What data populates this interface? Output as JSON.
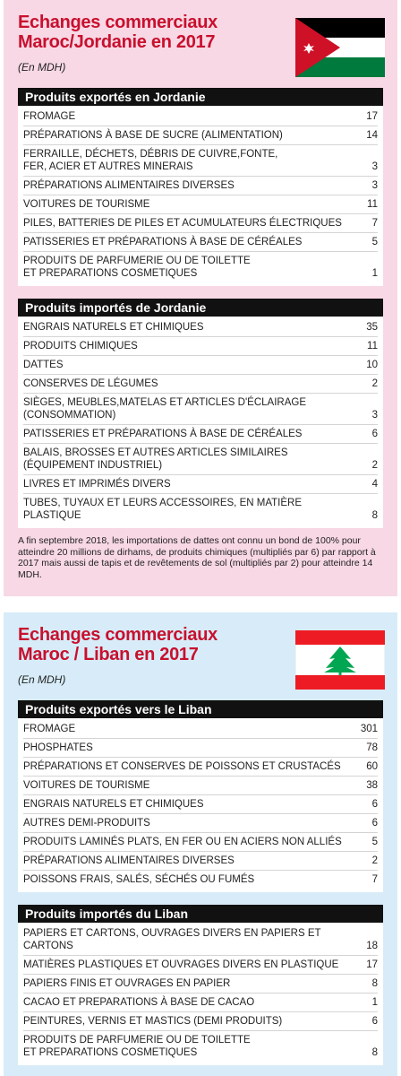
{
  "panels": [
    {
      "title": "Echanges commerciaux\nMaroc/Jordanie en 2017",
      "unit": "(En MDH)",
      "sections": [
        {
          "heading": "Produits exportés en Jordanie",
          "rows": [
            [
              "FROMAGE",
              17
            ],
            [
              "PRÉPARATIONS À BASE DE SUCRE (ALIMENTATION)",
              14
            ],
            [
              "FERRAILLE, DÉCHETS, DÉBRIS DE CUIVRE,FONTE,\nFER, ACIER ET AUTRES MINERAIS",
              3
            ],
            [
              "PRÉPARATIONS ALIMENTAIRES DIVERSES",
              3
            ],
            [
              "VOITURES DE TOURISME",
              11
            ],
            [
              "PILES, BATTERIES DE PILES ET ACUMULATEURS ÉLECTRIQUES",
              7
            ],
            [
              "PATISSERIES ET PRÉPARATIONS À BASE DE CÉRÉALES",
              5
            ],
            [
              "PRODUITS DE PARFUMERIE OU DE TOILETTE\nET PREPARATIONS COSMETIQUES",
              1
            ]
          ]
        },
        {
          "heading": "Produits importés de Jordanie",
          "rows": [
            [
              "ENGRAIS NATURELS ET CHIMIQUES",
              35
            ],
            [
              "PRODUITS CHIMIQUES",
              11
            ],
            [
              "DATTES",
              10
            ],
            [
              "CONSERVES DE LÉGUMES",
              2
            ],
            [
              "SIÈGES, MEUBLES,MATELAS ET ARTICLES D'ÉCLAIRAGE\n(CONSOMMATION)",
              3
            ],
            [
              "PATISSERIES ET PRÉPARATIONS À BASE DE CÉRÉALES",
              6
            ],
            [
              "BALAIS, BROSSES ET AUTRES ARTICLES SIMILAIRES\n(ÉQUIPEMENT INDUSTRIEL)",
              2
            ],
            [
              "LIVRES ET IMPRIMÉS DIVERS",
              4
            ],
            [
              "TUBES, TUYAUX ET LEURS ACCESSOIRES, EN MATIÈRE PLASTIQUE",
              8
            ]
          ]
        }
      ],
      "note": "A fin septembre 2018, les importations de dattes ont connu un bond de 100% pour atteindre 20 millions de dirhams, de produits chimiques (multipliés par 6) par rapport à 2017 mais aussi de tapis et de revêtements de sol (multipliés par 2) pour atteindre 14 MDH."
    },
    {
      "title": "Echanges commerciaux\nMaroc / Liban en 2017",
      "unit": "(En MDH)",
      "sections": [
        {
          "heading": "Produits exportés vers le Liban",
          "rows": [
            [
              "FROMAGE",
              301
            ],
            [
              "PHOSPHATES",
              78
            ],
            [
              "PRÉPARATIONS ET CONSERVES DE POISSONS ET CRUSTACÉS",
              60
            ],
            [
              "VOITURES DE TOURISME",
              38
            ],
            [
              "ENGRAIS NATURELS ET CHIMIQUES",
              6
            ],
            [
              "AUTRES DEMI-PRODUITS",
              6
            ],
            [
              "PRODUITS LAMINÉS PLATS, EN FER OU EN ACIERS NON ALLIÉS",
              5
            ],
            [
              "PRÉPARATIONS ALIMENTAIRES DIVERSES",
              2
            ],
            [
              "POISSONS FRAIS, SALÉS, SÉCHÉS OU FUMÉS",
              7
            ]
          ]
        },
        {
          "heading": "Produits importés du Liban",
          "rows": [
            [
              "PAPIERS ET CARTONS, OUVRAGES DIVERS EN PAPIERS ET CARTONS",
              18
            ],
            [
              "MATIÈRES PLASTIQUES ET OUVRAGES DIVERS EN PLASTIQUE",
              17
            ],
            [
              "PAPIERS FINIS ET OUVRAGES EN PAPIER",
              8
            ],
            [
              "CACAO ET PREPARATIONS À BASE DE CACAO",
              1
            ],
            [
              "PEINTURES, VERNIS ET MASTICS (DEMI PRODUITS)",
              6
            ],
            [
              "PRODUITS DE PARFUMERIE OU DE TOILETTE\nET PREPARATIONS COSMETIQUES",
              8
            ]
          ]
        }
      ]
    }
  ]
}
